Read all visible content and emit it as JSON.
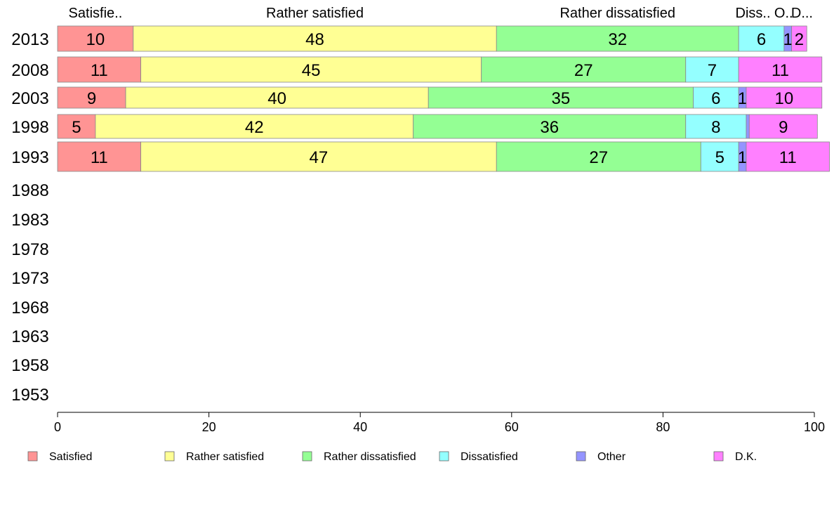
{
  "chart_data": {
    "type": "bar",
    "orientation": "horizontal-stacked",
    "title": "",
    "xlabel": "",
    "ylabel": "",
    "xlim": [
      0,
      100
    ],
    "x_ticks": [
      0,
      20,
      40,
      60,
      80,
      100
    ],
    "x_tick_labels": [
      "0",
      "20",
      "40",
      "60",
      "80",
      "100"
    ],
    "grid": false,
    "legend_position": "bottom",
    "categories": [
      "2013",
      "2008",
      "2003",
      "1998",
      "1993",
      "1988",
      "1983",
      "1978",
      "1973",
      "1968",
      "1963",
      "1958",
      "1953"
    ],
    "top_labels": [
      "Satisfie..",
      "Rather satisfied",
      "Rather dissatisfied",
      "Diss..",
      "O..",
      "D..."
    ],
    "series": [
      {
        "name": "Satisfied",
        "color": "#ff9494",
        "values": [
          10,
          11,
          9,
          5,
          11,
          null,
          null,
          null,
          null,
          null,
          null,
          null,
          null
        ]
      },
      {
        "name": "Rather satisfied",
        "color": "#ffff94",
        "values": [
          48,
          45,
          40,
          42,
          47,
          null,
          null,
          null,
          null,
          null,
          null,
          null,
          null
        ]
      },
      {
        "name": "Rather dissatisfied",
        "color": "#94ff94",
        "values": [
          32,
          27,
          35,
          36,
          27,
          null,
          null,
          null,
          null,
          null,
          null,
          null,
          null
        ]
      },
      {
        "name": "Dissatisfied",
        "color": "#94ffff",
        "values": [
          6,
          7,
          6,
          8,
          5,
          null,
          null,
          null,
          null,
          null,
          null,
          null,
          null
        ]
      },
      {
        "name": "Other",
        "color": "#9494ff",
        "values": [
          1,
          0,
          1,
          0.4,
          1,
          null,
          null,
          null,
          null,
          null,
          null,
          null,
          null
        ]
      },
      {
        "name": "D.K.",
        "color": "#ff80ff",
        "values": [
          2,
          11,
          10,
          9,
          11,
          null,
          null,
          null,
          null,
          null,
          null,
          null,
          null
        ]
      }
    ],
    "segment_labels": [
      [
        "10",
        "48",
        "32",
        "6",
        "1",
        "2"
      ],
      [
        "11",
        "45",
        "27",
        "7",
        "",
        "11"
      ],
      [
        "9",
        "40",
        "35",
        "6",
        "1",
        "10"
      ],
      [
        "5",
        "42",
        "36",
        "8",
        "",
        "9"
      ],
      [
        "11",
        "47",
        "27",
        "5",
        "1",
        "11"
      ]
    ]
  }
}
